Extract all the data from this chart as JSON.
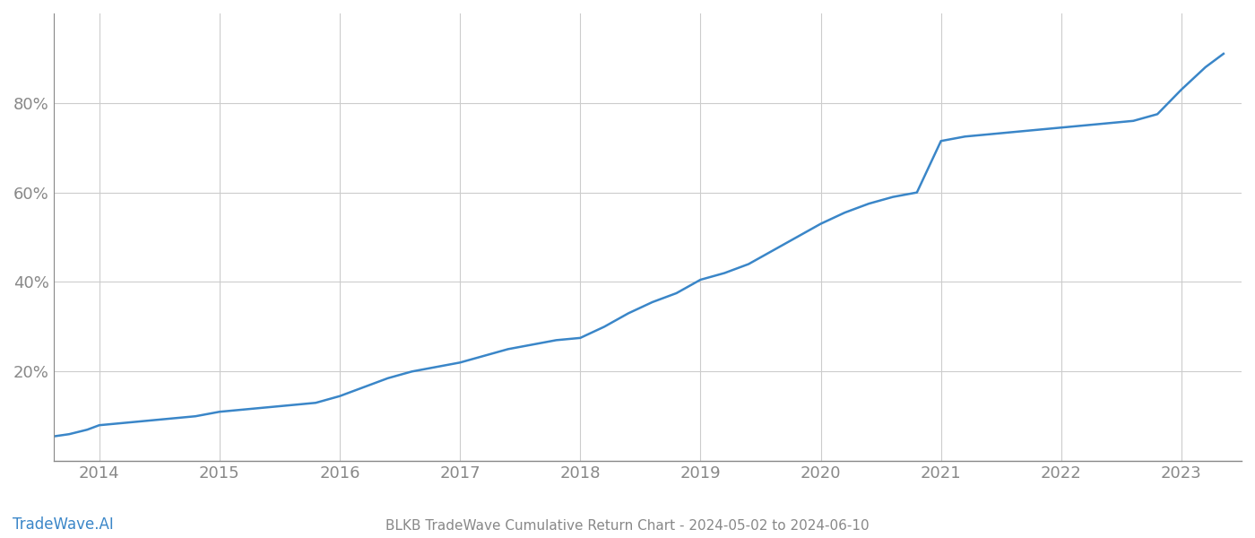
{
  "title": "BLKB TradeWave Cumulative Return Chart - 2024-05-02 to 2024-06-10",
  "watermark": "TradeWave.AI",
  "line_color": "#3a86c8",
  "background_color": "#ffffff",
  "grid_color": "#cccccc",
  "axis_color": "#888888",
  "x_years": [
    2014,
    2015,
    2016,
    2017,
    2018,
    2019,
    2020,
    2021,
    2022,
    2023
  ],
  "x_data": [
    2013.62,
    2013.75,
    2013.9,
    2014.0,
    2014.2,
    2014.4,
    2014.6,
    2014.8,
    2015.0,
    2015.2,
    2015.4,
    2015.6,
    2015.8,
    2016.0,
    2016.2,
    2016.4,
    2016.6,
    2016.8,
    2017.0,
    2017.2,
    2017.4,
    2017.6,
    2017.8,
    2018.0,
    2018.2,
    2018.4,
    2018.6,
    2018.8,
    2019.0,
    2019.2,
    2019.4,
    2019.6,
    2019.8,
    2020.0,
    2020.2,
    2020.4,
    2020.6,
    2020.8,
    2021.0,
    2021.2,
    2021.4,
    2021.6,
    2021.8,
    2022.0,
    2022.2,
    2022.4,
    2022.6,
    2022.8,
    2023.0,
    2023.2,
    2023.35
  ],
  "y_data": [
    5.5,
    6.0,
    7.0,
    8.0,
    8.5,
    9.0,
    9.5,
    10.0,
    11.0,
    11.5,
    12.0,
    12.5,
    13.0,
    14.5,
    16.5,
    18.5,
    20.0,
    21.0,
    22.0,
    23.5,
    25.0,
    26.0,
    27.0,
    27.5,
    30.0,
    33.0,
    35.5,
    37.5,
    40.5,
    42.0,
    44.0,
    47.0,
    50.0,
    53.0,
    55.5,
    57.5,
    59.0,
    60.0,
    71.5,
    72.5,
    73.0,
    73.5,
    74.0,
    74.5,
    75.0,
    75.5,
    76.0,
    77.5,
    83.0,
    88.0,
    91.0
  ],
  "yticks": [
    20,
    40,
    60,
    80
  ],
  "ylim": [
    0,
    100
  ],
  "xlim": [
    2013.62,
    2023.5
  ],
  "title_fontsize": 11,
  "watermark_fontsize": 12,
  "tick_fontsize": 13,
  "line_width": 1.8
}
